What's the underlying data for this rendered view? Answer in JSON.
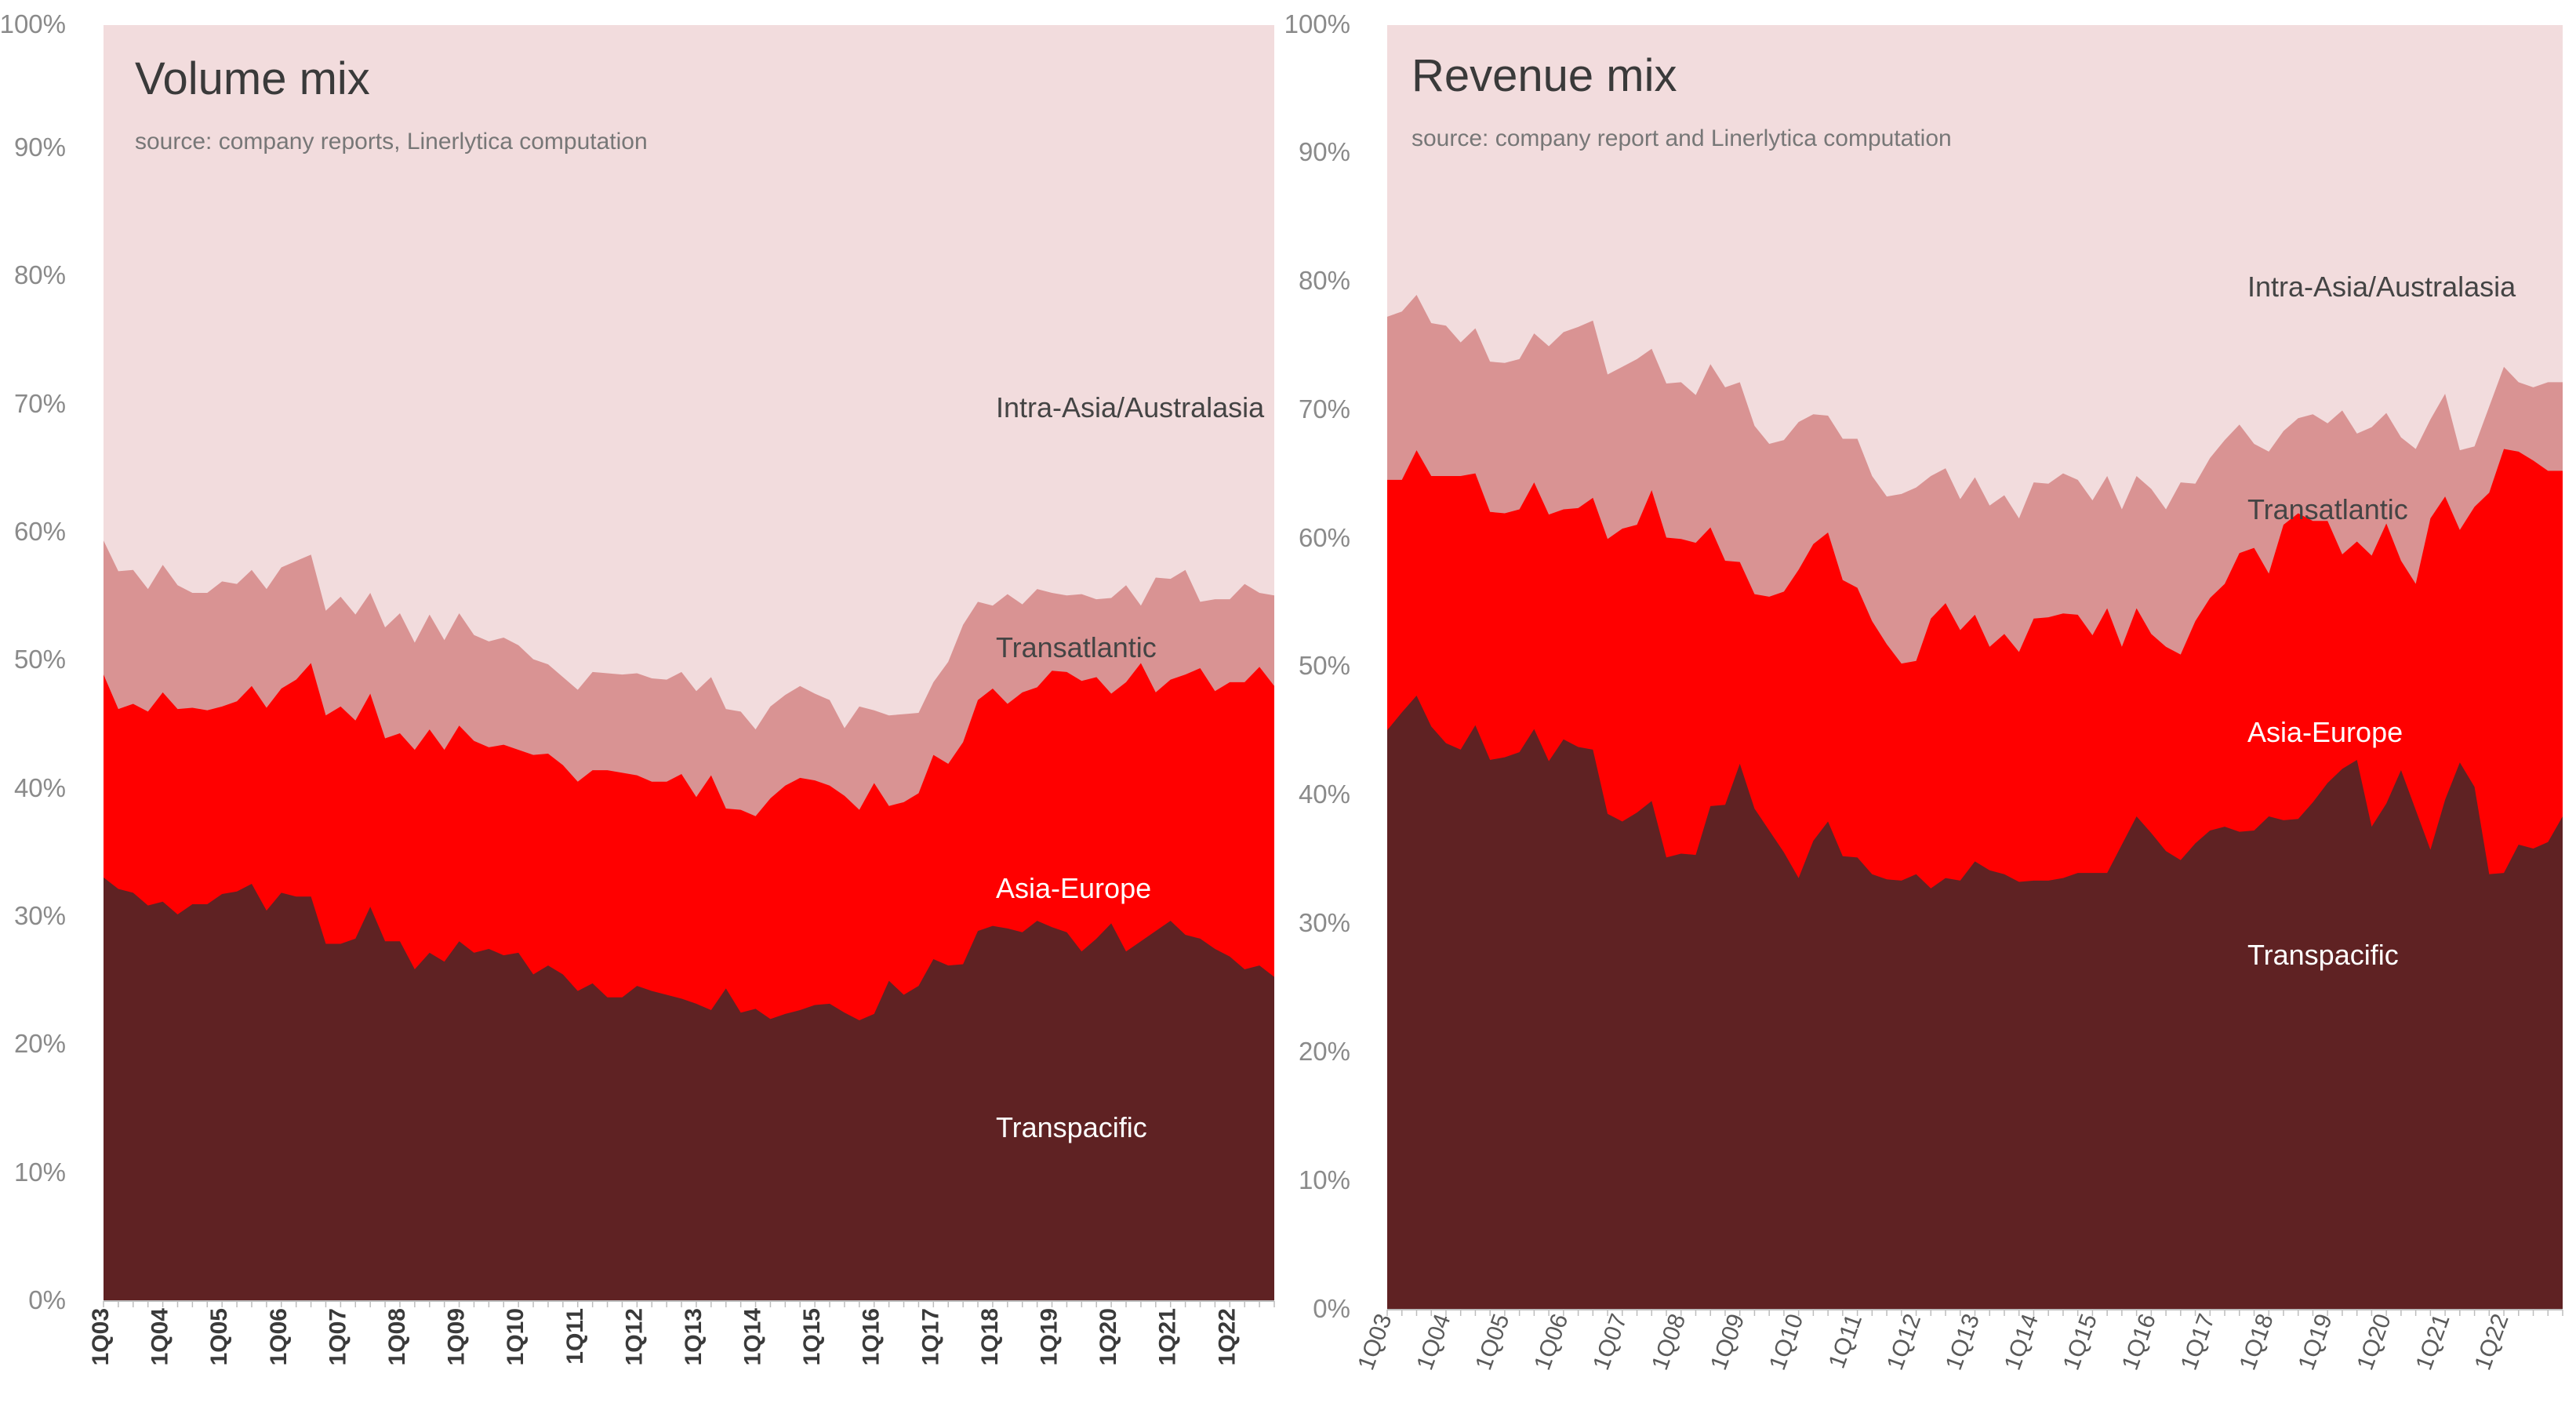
{
  "colors": {
    "Transpacific": "#5f2223",
    "Asia-Europe": "#ff0000",
    "Transatlantic": "#d99393",
    "Intra-Asia/Australasia": "#f2dcdd"
  },
  "chart_data": [
    {
      "type": "area",
      "stacked": true,
      "title": "Volume mix",
      "subtitle": "source: company reports, Linerlytica computation",
      "ylim": [
        0,
        100
      ],
      "yticks": [
        "0%",
        "10%",
        "20%",
        "30%",
        "40%",
        "50%",
        "60%",
        "70%",
        "80%",
        "90%",
        "100%"
      ],
      "xtick_labels": [
        "1Q03",
        "1Q04",
        "1Q05",
        "1Q06",
        "1Q07",
        "1Q08",
        "1Q09",
        "1Q10",
        "1Q11",
        "1Q12",
        "1Q13",
        "1Q14",
        "1Q15",
        "1Q16",
        "1Q17",
        "1Q18",
        "1Q19",
        "1Q20",
        "1Q21",
        "1Q22"
      ],
      "series": [
        {
          "name": "Transpacific",
          "cum": [
            33.2,
            32.3,
            32.0,
            31.0,
            31.3,
            30.3,
            31.1,
            31.1,
            31.9,
            32.1,
            32.7,
            30.6,
            32.0,
            31.7,
            31.7,
            28.0,
            28.0,
            28.4,
            30.9,
            28.2,
            28.2,
            26.0,
            27.3,
            26.6,
            28.2,
            27.3,
            27.6,
            27.1,
            27.3,
            25.6,
            26.3,
            25.6,
            24.3,
            24.9,
            23.8,
            23.8,
            24.7,
            24.3,
            24.0,
            23.7,
            23.3,
            22.8,
            24.5,
            22.6,
            22.9,
            22.1,
            22.5,
            22.8,
            23.2,
            23.3,
            22.6,
            22.0,
            22.5,
            25.1,
            24.0,
            24.7,
            26.8,
            26.3,
            26.4,
            29.0,
            29.4,
            29.2,
            28.9,
            29.8,
            29.3,
            28.9,
            27.4,
            28.4,
            29.6,
            27.4,
            28.2,
            29.0,
            29.8,
            28.7,
            28.4,
            27.6,
            27.0,
            26.0,
            26.3,
            25.4
          ]
        },
        {
          "name": "Asia-Europe",
          "cum": [
            49.1,
            46.4,
            46.8,
            46.2,
            47.7,
            46.4,
            46.5,
            46.3,
            46.6,
            47.0,
            48.2,
            46.5,
            48.0,
            48.7,
            50.0,
            45.9,
            46.6,
            45.5,
            47.6,
            44.1,
            44.5,
            43.2,
            44.8,
            43.2,
            45.1,
            43.9,
            43.4,
            43.6,
            43.2,
            42.8,
            42.9,
            42.0,
            40.7,
            41.6,
            41.6,
            41.4,
            41.2,
            40.7,
            40.7,
            41.3,
            39.5,
            41.2,
            38.6,
            38.5,
            38.0,
            39.4,
            40.4,
            41.0,
            40.8,
            40.4,
            39.6,
            38.5,
            40.6,
            38.8,
            39.1,
            39.8,
            42.8,
            42.1,
            43.8,
            47.1,
            48.0,
            46.8,
            47.7,
            48.1,
            49.4,
            49.3,
            48.6,
            48.9,
            47.6,
            48.5,
            50.0,
            47.7,
            48.7,
            49.1,
            49.6,
            47.8,
            48.5,
            48.5,
            49.7,
            48.2
          ]
        },
        {
          "name": "Transatlantic",
          "cum": [
            59.6,
            57.2,
            57.3,
            55.8,
            57.7,
            56.1,
            55.5,
            55.5,
            56.4,
            56.2,
            57.3,
            55.8,
            57.5,
            58.0,
            58.5,
            54.1,
            55.2,
            53.8,
            55.5,
            52.8,
            53.9,
            51.6,
            53.8,
            51.8,
            53.9,
            52.2,
            51.7,
            52.0,
            51.4,
            50.3,
            49.9,
            48.9,
            47.9,
            49.3,
            49.2,
            49.1,
            49.2,
            48.8,
            48.7,
            49.3,
            47.8,
            48.9,
            46.4,
            46.2,
            44.8,
            46.6,
            47.5,
            48.2,
            47.6,
            47.1,
            44.9,
            46.6,
            46.3,
            45.9,
            46.0,
            46.1,
            48.5,
            50.1,
            53.0,
            54.8,
            54.5,
            55.4,
            54.6,
            55.8,
            55.5,
            55.3,
            55.4,
            55.0,
            55.1,
            56.1,
            54.5,
            56.7,
            56.6,
            57.3,
            54.8,
            55.0,
            55.0,
            56.2,
            55.5,
            55.3
          ]
        },
        {
          "name": "Intra-Asia/Australasia",
          "cum": []
        }
      ],
      "labels": [
        "Intra-Asia/Australasia",
        "Transatlantic",
        "Asia-Europe",
        "Transpacific"
      ]
    },
    {
      "type": "area",
      "stacked": true,
      "title": "Revenue mix",
      "subtitle": "source: company report and Linerlytica computation",
      "ylim": [
        0,
        100
      ],
      "yticks": [
        "0%",
        "10%",
        "20%",
        "30%",
        "40%",
        "50%",
        "60%",
        "70%",
        "80%",
        "90%",
        "100%"
      ],
      "xtick_labels": [
        "1Q03",
        "1Q04",
        "1Q05",
        "1Q06",
        "1Q07",
        "1Q08",
        "1Q09",
        "1Q10",
        "1Q11",
        "1Q12",
        "1Q13",
        "1Q14",
        "1Q15",
        "1Q16",
        "1Q17",
        "1Q18",
        "1Q19",
        "1Q20",
        "1Q21",
        "1Q22"
      ],
      "series": [
        {
          "name": "Transpacific",
          "cum": [
            45.1,
            46.5,
            47.8,
            45.4,
            44.1,
            43.6,
            45.5,
            42.8,
            43.0,
            43.4,
            45.2,
            42.7,
            44.4,
            43.8,
            43.6,
            38.6,
            38.0,
            38.7,
            39.6,
            35.2,
            35.5,
            35.4,
            39.2,
            39.3,
            42.5,
            39.0,
            37.3,
            35.6,
            33.6,
            36.5,
            38.0,
            35.3,
            35.2,
            33.9,
            33.5,
            33.4,
            33.9,
            32.8,
            33.6,
            33.4,
            34.9,
            34.2,
            33.9,
            33.3,
            33.4,
            33.4,
            33.6,
            34.0,
            34.0,
            34.0,
            36.2,
            38.4,
            37.1,
            35.7,
            35.0,
            36.3,
            37.3,
            37.6,
            37.2,
            37.3,
            38.4,
            38.1,
            38.2,
            39.5,
            41.0,
            42.1,
            42.8,
            37.6,
            39.4,
            42.0,
            38.9,
            35.8,
            39.7,
            42.6,
            40.7,
            33.9,
            34.0,
            36.2,
            35.9,
            36.4,
            38.4
          ]
        },
        {
          "name": "Asia-Europe",
          "cum": [
            64.6,
            64.6,
            66.9,
            64.9,
            64.9,
            64.9,
            65.1,
            62.1,
            62.0,
            62.3,
            64.4,
            61.9,
            62.3,
            62.4,
            63.2,
            60.0,
            60.8,
            61.1,
            63.8,
            60.1,
            60.0,
            59.7,
            60.9,
            58.3,
            58.2,
            55.7,
            55.5,
            55.9,
            57.6,
            59.6,
            60.5,
            56.8,
            56.2,
            53.6,
            51.8,
            50.3,
            50.5,
            53.8,
            55.0,
            52.9,
            54.1,
            51.6,
            52.6,
            51.2,
            53.8,
            53.9,
            54.2,
            54.1,
            52.5,
            54.6,
            51.6,
            54.6,
            52.6,
            51.6,
            51.0,
            53.6,
            55.4,
            56.5,
            58.9,
            59.3,
            57.3,
            61.1,
            62.0,
            61.4,
            61.4,
            58.8,
            59.8,
            58.7,
            61.2,
            58.3,
            56.5,
            61.6,
            63.3,
            60.7,
            62.5,
            63.6,
            67.0,
            66.8,
            66.1,
            65.3,
            65.3
          ]
        },
        {
          "name": "Transatlantic",
          "cum": [
            77.3,
            77.7,
            79.0,
            76.8,
            76.6,
            75.3,
            76.4,
            73.8,
            73.7,
            74.0,
            76.0,
            75.0,
            76.1,
            76.5,
            77.0,
            72.8,
            73.4,
            74.0,
            74.8,
            72.1,
            72.2,
            71.2,
            73.6,
            71.8,
            72.2,
            68.8,
            67.4,
            67.7,
            69.1,
            69.7,
            69.6,
            67.8,
            67.8,
            64.9,
            63.3,
            63.5,
            64.0,
            64.9,
            65.5,
            63.1,
            64.8,
            62.6,
            63.4,
            61.6,
            64.4,
            64.3,
            65.1,
            64.6,
            63.0,
            64.9,
            62.3,
            64.9,
            63.9,
            62.3,
            64.4,
            64.3,
            66.3,
            67.7,
            68.9,
            67.4,
            66.8,
            68.4,
            69.4,
            69.7,
            69.0,
            70.0,
            68.2,
            68.7,
            69.8,
            67.9,
            67.0,
            69.3,
            71.3,
            66.9,
            67.2,
            70.3,
            73.4,
            72.2,
            71.8,
            72.2,
            72.2
          ]
        },
        {
          "name": "Intra-Asia/Australasia",
          "cum": []
        }
      ],
      "labels": [
        "Intra-Asia/Australasia",
        "Transatlantic",
        "Asia-Europe",
        "Transpacific"
      ]
    }
  ]
}
